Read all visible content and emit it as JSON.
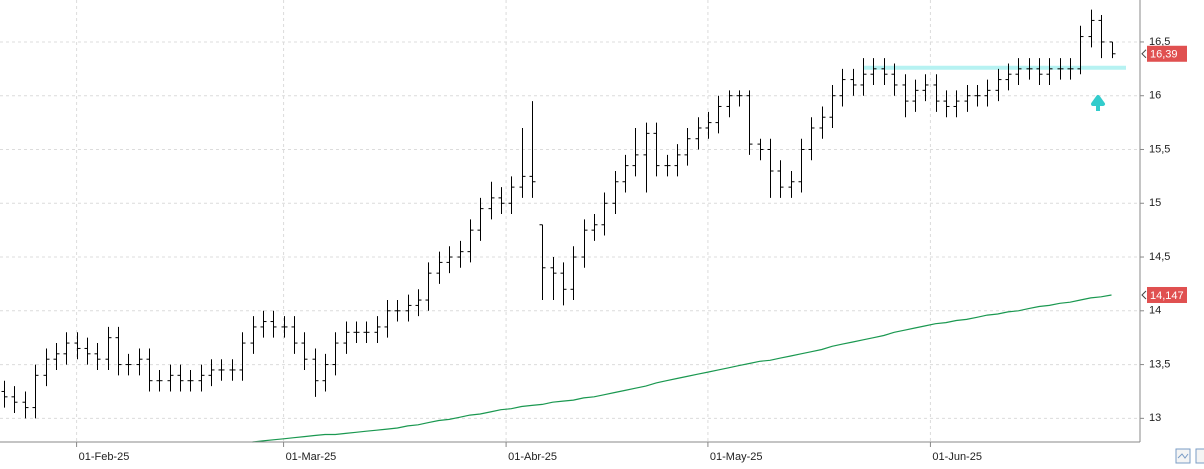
{
  "chart_data": {
    "type": "ohlc",
    "xlim": [
      -0.4,
      109.75
    ],
    "xticks": [
      {
        "value": 7,
        "label": "01-Feb-25"
      },
      {
        "value": 27,
        "label": "01-Mar-25"
      },
      {
        "value": 48.5,
        "label": "01-Abr-25"
      },
      {
        "value": 68,
        "label": "01-May-25"
      },
      {
        "value": 89.5,
        "label": "01-Jun-25"
      }
    ],
    "ylim": [
      12.78,
      16.89
    ],
    "yticks": [
      {
        "value": 13,
        "label": "13"
      },
      {
        "value": 13.5,
        "label": "13,5"
      },
      {
        "value": 14,
        "label": "14"
      },
      {
        "value": 14.5,
        "label": "14,5"
      },
      {
        "value": 15,
        "label": "15"
      },
      {
        "value": 15.5,
        "label": "15,5"
      },
      {
        "value": 16,
        "label": "16"
      },
      {
        "value": 16.5,
        "label": "16,5"
      }
    ],
    "grid": true,
    "series": [
      {
        "type": "ohlc",
        "color": "#000000",
        "open": [
          13.25,
          13.2,
          13.15,
          13.1,
          13.4,
          13.55,
          13.6,
          13.7,
          13.65,
          13.6,
          13.55,
          13.75,
          13.5,
          13.5,
          13.55,
          13.35,
          13.35,
          13.4,
          13.35,
          13.35,
          13.4,
          13.45,
          13.45,
          13.45,
          13.7,
          13.85,
          13.9,
          13.85,
          13.85,
          13.7,
          13.55,
          13.35,
          13.5,
          13.7,
          13.8,
          13.8,
          13.8,
          13.85,
          14.0,
          14.0,
          14.05,
          14.1,
          14.35,
          14.45,
          14.5,
          14.55,
          14.75,
          14.95,
          15.05,
          15.0,
          15.15,
          15.25,
          14.8,
          14.4,
          14.35,
          14.2,
          14.5,
          14.75,
          14.8,
          15.0,
          15.2,
          15.35,
          15.45,
          15.65,
          15.35,
          15.35,
          15.45,
          15.6,
          15.7,
          15.75,
          15.9,
          16.0,
          16.0,
          15.55,
          15.5,
          15.3,
          15.15,
          15.2,
          15.5,
          15.7,
          15.8,
          16.0,
          16.15,
          16.1,
          16.2,
          16.25,
          16.2,
          16.1,
          15.95,
          16.05,
          16.1,
          15.95,
          15.9,
          15.95,
          16.0,
          16.0,
          16.05,
          16.15,
          16.2,
          16.25,
          16.25,
          16.2,
          16.25,
          16.25,
          16.25,
          16.55,
          16.7,
          16.5
        ],
        "high": [
          13.35,
          13.3,
          13.25,
          13.5,
          13.65,
          13.7,
          13.8,
          13.8,
          13.75,
          13.7,
          13.85,
          13.85,
          13.6,
          13.65,
          13.65,
          13.45,
          13.5,
          13.5,
          13.45,
          13.5,
          13.55,
          13.55,
          13.55,
          13.8,
          13.95,
          14.0,
          14.0,
          13.95,
          13.95,
          13.8,
          13.65,
          13.6,
          13.8,
          13.9,
          13.9,
          13.9,
          13.95,
          14.1,
          14.1,
          14.15,
          14.2,
          14.45,
          14.55,
          14.6,
          14.65,
          14.85,
          15.05,
          15.2,
          15.15,
          15.25,
          15.7,
          15.95,
          14.8,
          14.5,
          14.45,
          14.6,
          14.85,
          14.9,
          15.1,
          15.3,
          15.45,
          15.7,
          15.75,
          15.75,
          15.45,
          15.55,
          15.7,
          15.8,
          15.85,
          16.0,
          16.05,
          16.05,
          16.05,
          15.6,
          15.6,
          15.4,
          15.3,
          15.6,
          15.8,
          15.9,
          16.1,
          16.25,
          16.25,
          16.35,
          16.35,
          16.35,
          16.3,
          16.2,
          16.15,
          16.2,
          16.2,
          16.05,
          16.05,
          16.1,
          16.1,
          16.15,
          16.25,
          16.3,
          16.35,
          16.35,
          16.35,
          16.35,
          16.35,
          16.35,
          16.65,
          16.8,
          16.75,
          16.5
        ],
        "low": [
          13.1,
          13.05,
          13.0,
          13.0,
          13.3,
          13.45,
          13.5,
          13.55,
          13.5,
          13.45,
          13.45,
          13.4,
          13.4,
          13.4,
          13.25,
          13.25,
          13.25,
          13.25,
          13.25,
          13.25,
          13.3,
          13.35,
          13.35,
          13.35,
          13.6,
          13.75,
          13.75,
          13.75,
          13.6,
          13.45,
          13.2,
          13.25,
          13.4,
          13.6,
          13.7,
          13.7,
          13.7,
          13.75,
          13.9,
          13.9,
          13.95,
          14.0,
          14.25,
          14.35,
          14.4,
          14.45,
          14.65,
          14.85,
          14.9,
          14.9,
          15.05,
          15.05,
          14.1,
          14.1,
          14.05,
          14.1,
          14.4,
          14.65,
          14.7,
          14.9,
          15.1,
          15.25,
          15.1,
          15.25,
          15.25,
          15.25,
          15.35,
          15.5,
          15.6,
          15.65,
          15.8,
          15.9,
          15.45,
          15.4,
          15.05,
          15.05,
          15.05,
          15.1,
          15.4,
          15.6,
          15.7,
          15.9,
          16.0,
          16.0,
          16.1,
          16.1,
          16.0,
          15.8,
          15.85,
          15.95,
          15.85,
          15.8,
          15.8,
          15.85,
          15.9,
          15.9,
          15.95,
          16.05,
          16.1,
          16.15,
          16.1,
          16.1,
          16.15,
          16.15,
          16.2,
          16.45,
          16.35,
          16.35
        ],
        "close": [
          13.2,
          13.15,
          13.1,
          13.4,
          13.55,
          13.6,
          13.7,
          13.65,
          13.6,
          13.55,
          13.75,
          13.5,
          13.5,
          13.55,
          13.35,
          13.35,
          13.4,
          13.35,
          13.35,
          13.4,
          13.45,
          13.45,
          13.45,
          13.7,
          13.85,
          13.9,
          13.85,
          13.85,
          13.7,
          13.55,
          13.35,
          13.5,
          13.7,
          13.8,
          13.8,
          13.8,
          13.85,
          14.0,
          14.0,
          14.05,
          14.1,
          14.35,
          14.45,
          14.5,
          14.55,
          14.75,
          14.95,
          15.05,
          15.0,
          15.15,
          15.25,
          15.2,
          14.4,
          14.35,
          14.2,
          14.5,
          14.75,
          14.8,
          15.0,
          15.2,
          15.35,
          15.45,
          15.65,
          15.35,
          15.35,
          15.45,
          15.6,
          15.7,
          15.75,
          15.9,
          16.0,
          16.0,
          15.55,
          15.5,
          15.3,
          15.15,
          15.2,
          15.5,
          15.7,
          15.8,
          16.0,
          16.15,
          16.1,
          16.2,
          16.25,
          16.2,
          16.1,
          15.95,
          16.05,
          16.1,
          15.95,
          15.9,
          15.95,
          16.0,
          16.0,
          16.05,
          16.15,
          16.2,
          16.25,
          16.25,
          16.2,
          16.25,
          16.25,
          16.25,
          16.55,
          16.7,
          16.5,
          16.39
        ]
      },
      {
        "type": "line",
        "color": "#1a9850",
        "values": [
          null,
          null,
          null,
          null,
          null,
          null,
          null,
          null,
          null,
          null,
          null,
          null,
          null,
          null,
          null,
          null,
          null,
          null,
          null,
          null,
          null,
          null,
          null,
          null,
          12.78,
          12.79,
          12.8,
          12.81,
          12.82,
          12.83,
          12.84,
          12.85,
          12.85,
          12.86,
          12.87,
          12.88,
          12.89,
          12.9,
          12.91,
          12.93,
          12.94,
          12.96,
          12.98,
          12.99,
          13.01,
          13.03,
          13.04,
          13.06,
          13.08,
          13.09,
          13.11,
          13.12,
          13.13,
          13.15,
          13.16,
          13.17,
          13.19,
          13.2,
          13.22,
          13.24,
          13.26,
          13.28,
          13.3,
          13.33,
          13.35,
          13.37,
          13.39,
          13.41,
          13.43,
          13.45,
          13.47,
          13.49,
          13.51,
          13.53,
          13.54,
          13.56,
          13.58,
          13.6,
          13.62,
          13.64,
          13.67,
          13.69,
          13.71,
          13.73,
          13.75,
          13.77,
          13.8,
          13.82,
          13.84,
          13.86,
          13.88,
          13.89,
          13.91,
          13.92,
          13.94,
          13.96,
          13.97,
          13.99,
          14.0,
          14.02,
          14.04,
          14.05,
          14.07,
          14.08,
          14.1,
          14.12,
          14.13,
          14.147
        ]
      }
    ],
    "price_labels": [
      {
        "value": 16.39,
        "label": "16,39",
        "color": "#e05050"
      },
      {
        "value": 14.147,
        "label": "14,147",
        "color": "#e05050"
      }
    ],
    "hline": {
      "value": 16.26,
      "from": 83,
      "color": "#b6f2f2"
    }
  }
}
